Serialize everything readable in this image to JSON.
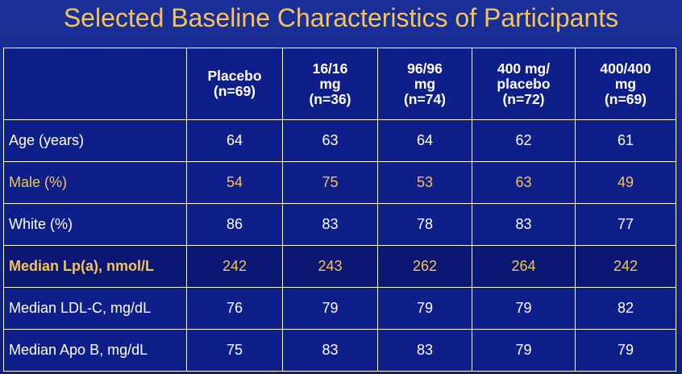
{
  "title": "Selected Baseline Characteristics of Participants",
  "colors": {
    "background": "#14278a",
    "title": "#f5c35a",
    "highlight_text": "#f5c35a",
    "grid": "#ffffff",
    "text": "#ffffff"
  },
  "table": {
    "corner": "",
    "headers": [
      {
        "lines": [
          "Placebo",
          "(n=69)"
        ]
      },
      {
        "lines": [
          "16/16",
          "mg",
          "(n=36)"
        ]
      },
      {
        "lines": [
          "96/96",
          "mg",
          "(n=74)"
        ]
      },
      {
        "lines": [
          "400 mg/",
          "placebo",
          "(n=72)"
        ]
      },
      {
        "lines": [
          "400/400",
          "mg",
          "(n=69)"
        ]
      }
    ],
    "rows": [
      {
        "label": "Age (years)",
        "values": [
          "64",
          "63",
          "64",
          "62",
          "61"
        ]
      },
      {
        "label": "Male (%)",
        "values": [
          "54",
          "75",
          "53",
          "63",
          "49"
        ]
      },
      {
        "label": "White (%)",
        "values": [
          "86",
          "83",
          "78",
          "83",
          "77"
        ]
      },
      {
        "label": "Median Lp(a), nmol/L",
        "values": [
          "242",
          "243",
          "262",
          "264",
          "242"
        ]
      },
      {
        "label": "Median LDL-C, mg/dL",
        "values": [
          "76",
          "79",
          "79",
          "79",
          "82"
        ]
      },
      {
        "label": "Median Apo B, mg/dL",
        "values": [
          "75",
          "83",
          "83",
          "79",
          "79"
        ]
      }
    ]
  }
}
